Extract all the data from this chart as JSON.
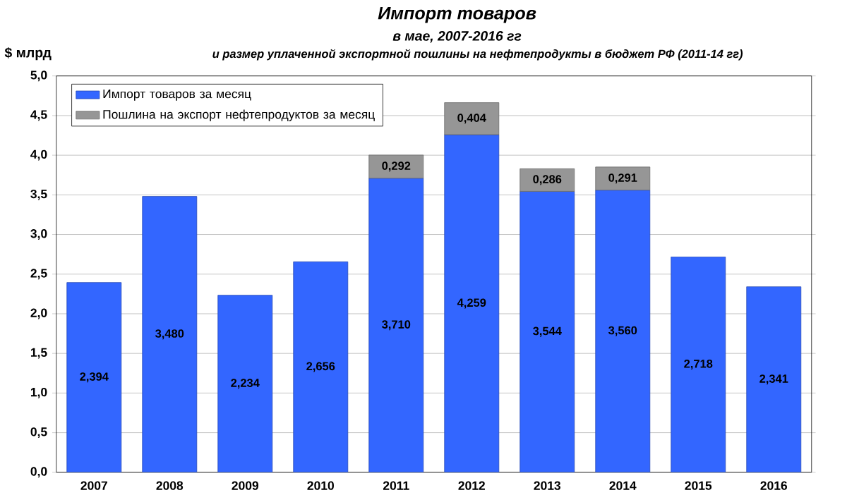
{
  "chart_data": {
    "type": "bar",
    "stacked": true,
    "title": "Импорт товаров",
    "subtitle": "в мае, 2007-2016 гг",
    "annotations": [
      "и размер уплаченной экспортной пошлины на нефтепродукты в бюджет РФ (2011-14 гг)"
    ],
    "ylabel": "$ млрд",
    "categories": [
      "2007",
      "2008",
      "2009",
      "2010",
      "2011",
      "2012",
      "2013",
      "2014",
      "2015",
      "2016"
    ],
    "series": [
      {
        "name": "Импорт товаров за месяц",
        "color": "#3366ff",
        "values": [
          2.394,
          3.48,
          2.234,
          2.656,
          3.71,
          4.259,
          3.544,
          3.56,
          2.718,
          2.341
        ],
        "value_labels": [
          "2,394",
          "3,480",
          "2,234",
          "2,656",
          "3,710",
          "4,259",
          "3,544",
          "3,560",
          "2,718",
          "2,341"
        ]
      },
      {
        "name": "Пошлина на экспорт нефтепродуктов за месяц",
        "color": "#969696",
        "values": [
          null,
          null,
          null,
          null,
          0.292,
          0.404,
          0.286,
          0.291,
          null,
          null
        ],
        "value_labels": [
          null,
          null,
          null,
          null,
          "0,292",
          "0,404",
          "0,286",
          "0,291",
          null,
          null
        ]
      }
    ],
    "ylim": [
      0,
      5
    ],
    "yticks": [
      {
        "value": 0,
        "label": "0,0"
      },
      {
        "value": 0.5,
        "label": "0,5"
      },
      {
        "value": 1,
        "label": "1,0"
      },
      {
        "value": 1.5,
        "label": "1,5"
      },
      {
        "value": 2,
        "label": "2,0"
      },
      {
        "value": 2.5,
        "label": "2,5"
      },
      {
        "value": 3,
        "label": "3,0"
      },
      {
        "value": 3.5,
        "label": "3,5"
      },
      {
        "value": 4,
        "label": "4,0"
      },
      {
        "value": 4.5,
        "label": "4,5"
      },
      {
        "value": 5,
        "label": "5,0"
      }
    ],
    "grid": "y",
    "legend": "top left"
  }
}
